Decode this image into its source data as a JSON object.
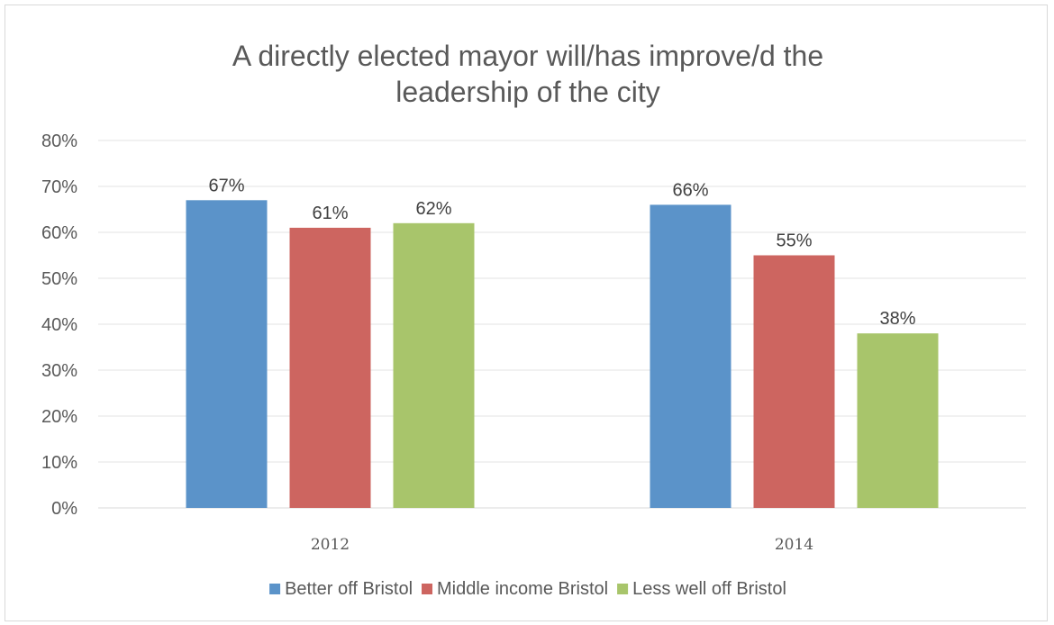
{
  "chart_data": {
    "type": "bar",
    "title": "A directly elected mayor will/has improve/d the leadership of the city",
    "title_lines": [
      "A directly elected mayor will/has improve/d the",
      "leadership of the city"
    ],
    "categories": [
      "2012",
      "2014"
    ],
    "series": [
      {
        "name": "Better off Bristol",
        "values": [
          67,
          66
        ],
        "labels": [
          "67%",
          "66%"
        ],
        "color": "#5b93c9"
      },
      {
        "name": "Middle income Bristol",
        "values": [
          61,
          55
        ],
        "labels": [
          "61%",
          "55%"
        ],
        "color": "#cd6560"
      },
      {
        "name": "Less well off Bristol",
        "values": [
          62,
          38
        ],
        "labels": [
          "62%",
          "38%"
        ],
        "color": "#a8c56b"
      }
    ],
    "ylim": [
      0,
      80
    ],
    "yticks": [
      0,
      10,
      20,
      30,
      40,
      50,
      60,
      70,
      80
    ],
    "ytick_labels": [
      "0%",
      "10%",
      "20%",
      "30%",
      "40%",
      "50%",
      "60%",
      "70%",
      "80%"
    ],
    "xlabel": "",
    "ylabel": "",
    "grid": true,
    "legend_position": "bottom"
  }
}
